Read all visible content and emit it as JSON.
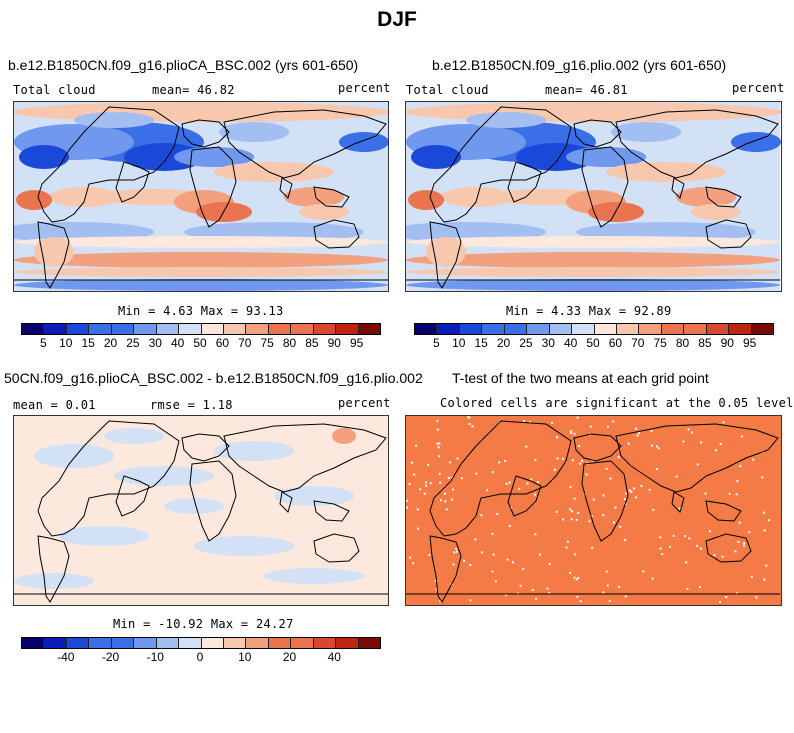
{
  "page_title": "DJF",
  "colors": {
    "scale": [
      "#08006e",
      "#0a1db8",
      "#1a48d8",
      "#3b6fe8",
      "#6f98ee",
      "#a3bff2",
      "#d2e1f6",
      "#fce8dc",
      "#f8c8ae",
      "#f2a07e",
      "#ea7450",
      "#d94730",
      "#bd2512",
      "#7a0a04"
    ],
    "tmap_fill": "#f47a46"
  },
  "panels": [
    {
      "title": "b.e12.B1850CN.f09_g16.plioCA_BSC.002 (yrs 601-650)",
      "left_label": "Total cloud",
      "center_label": "mean=  46.82",
      "right_label": "percent",
      "stats": "Min =   4.63 Max =  93.13"
    },
    {
      "title": "b.e12.B1850CN.f09_g16.plio.002 (yrs 601-650)",
      "left_label": "Total cloud",
      "center_label": "mean=  46.81",
      "right_label": "percent",
      "stats": "Min =   4.33 Max =  92.89"
    },
    {
      "title": "50CN.f09_g16.plioCA_BSC.002 - b.e12.B1850CN.f09_g16.plio.002",
      "left_label": "mean =   0.01",
      "center_label": "rmse =   1.18",
      "right_label": "percent",
      "stats": "Min = -10.92 Max =  24.27"
    },
    {
      "title": "T-test of the two means at each grid point",
      "subtitle": "Colored cells are significant at the 0.05 level"
    }
  ],
  "chart_data": [
    {
      "type": "heatmap",
      "colorbar_labels": [
        "5",
        "10",
        "15",
        "20",
        "25",
        "30",
        "40",
        "50",
        "60",
        "70",
        "75",
        "80",
        "85",
        "90",
        "95"
      ],
      "zmin": 4.63,
      "zmax": 93.13
    },
    {
      "type": "heatmap",
      "colorbar_labels": [
        "5",
        "10",
        "15",
        "20",
        "25",
        "30",
        "40",
        "50",
        "60",
        "70",
        "75",
        "80",
        "85",
        "90",
        "95"
      ],
      "zmin": 4.33,
      "zmax": 92.89
    },
    {
      "type": "heatmap",
      "colorbar_labels": [
        "-40",
        "-20",
        "-10",
        "0",
        "10",
        "20",
        "40"
      ],
      "zmin": -10.92,
      "zmax": 24.27
    }
  ]
}
